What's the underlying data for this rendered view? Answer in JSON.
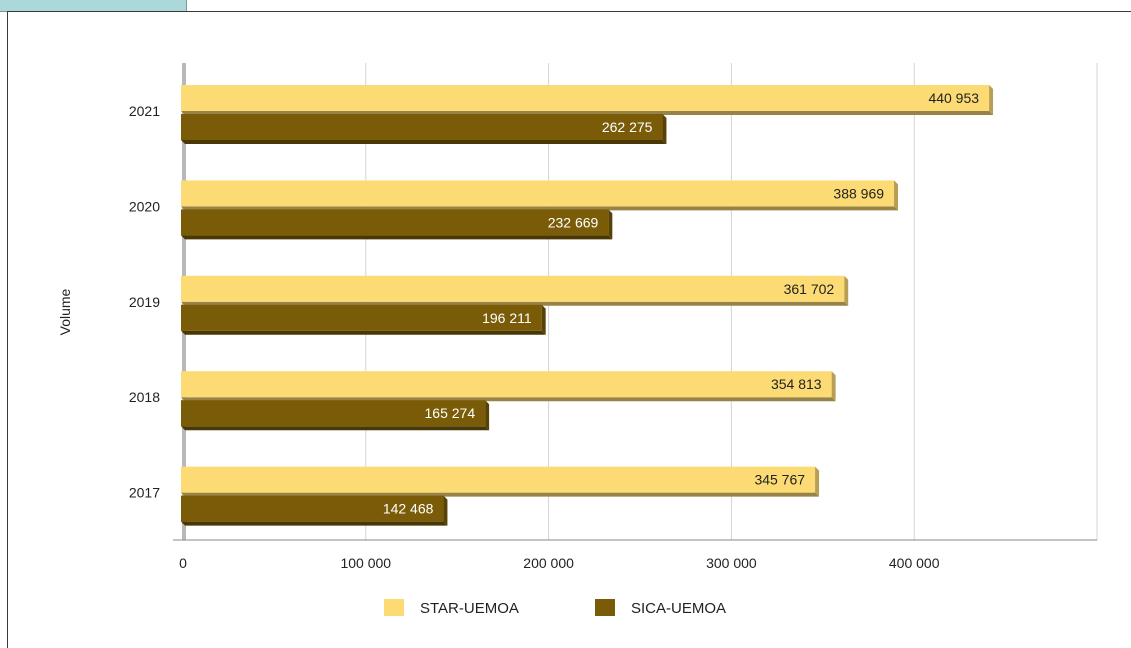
{
  "chart_data": {
    "type": "bar",
    "orientation": "horizontal",
    "categories": [
      "2021",
      "2020",
      "2019",
      "2018",
      "2017"
    ],
    "series": [
      {
        "name": "STAR-UEMOA",
        "values": [
          440953,
          388969,
          361702,
          354813,
          345767
        ],
        "labels": [
          "440 953",
          "388 969",
          "361 702",
          "354 813",
          "345 767"
        ],
        "color": "#fddb74"
      },
      {
        "name": "SICA-UEMOA",
        "values": [
          262275,
          232669,
          196211,
          165274,
          142468
        ],
        "labels": [
          "262 275",
          "232 669",
          "196 211",
          "165 274",
          "142 468"
        ],
        "color": "#7a5c08"
      }
    ],
    "xticks": [
      "0",
      "100 000",
      "200 000",
      "300 000",
      "400 000"
    ],
    "xtick_values": [
      0,
      100000,
      200000,
      300000,
      400000
    ],
    "xlim": [
      0,
      500000
    ],
    "ylabel": "Volume",
    "xlabel": "",
    "grid": true,
    "legend_position": "bottom"
  }
}
